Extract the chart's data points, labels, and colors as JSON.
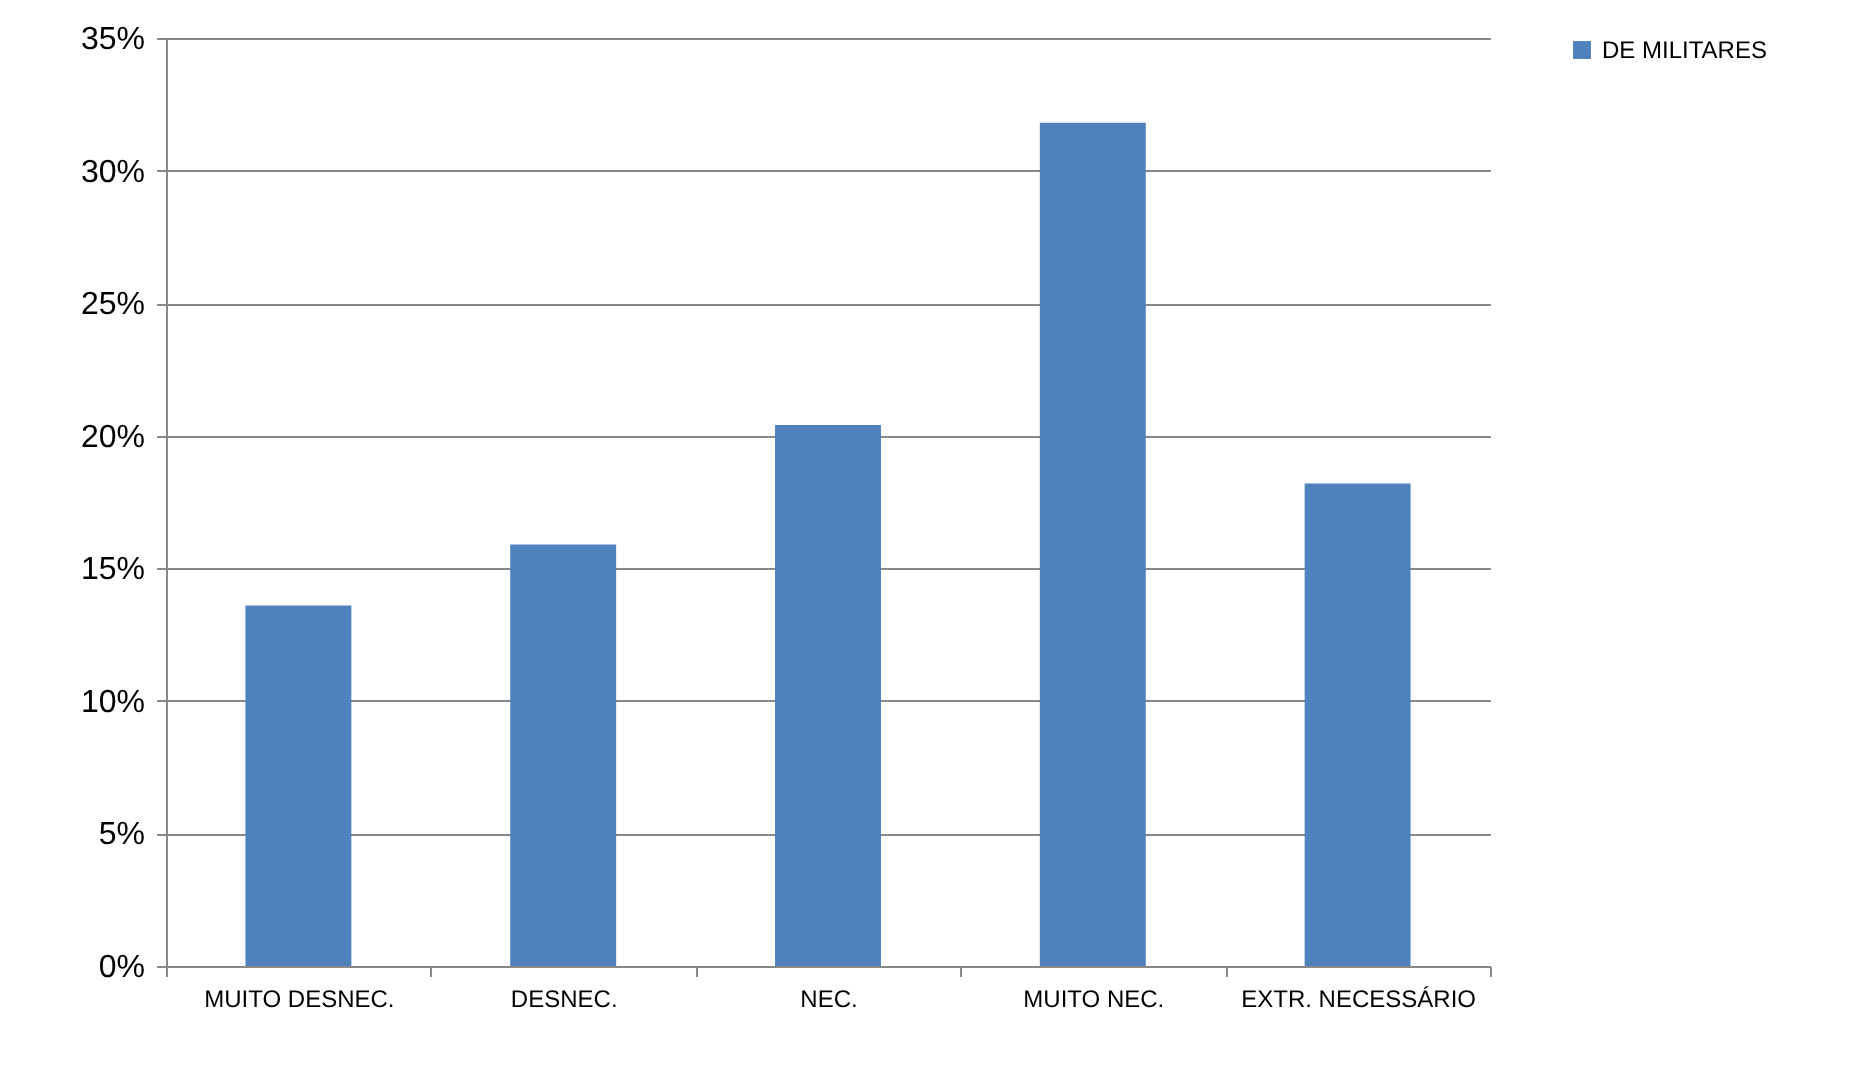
{
  "chart_data": {
    "type": "bar",
    "categories": [
      "MUITO DESNEC.",
      "DESNEC.",
      "NEC.",
      "MUITO NEC.",
      "EXTR. NECESSÁRIO"
    ],
    "series": [
      {
        "name": "DE MILITARES",
        "color": "#4f81bd",
        "values": [
          13.6,
          15.9,
          20.4,
          31.8,
          18.2
        ]
      }
    ],
    "ylim": [
      0,
      35
    ],
    "yticks": [
      {
        "value": 0,
        "label": "0%"
      },
      {
        "value": 5,
        "label": "5%"
      },
      {
        "value": 10,
        "label": "10%"
      },
      {
        "value": 15,
        "label": "15%"
      },
      {
        "value": 20,
        "label": "20%"
      },
      {
        "value": 25,
        "label": "25%"
      },
      {
        "value": 30,
        "label": "30%"
      },
      {
        "value": 35,
        "label": "35%"
      }
    ],
    "grid": "y",
    "legend": "right"
  }
}
